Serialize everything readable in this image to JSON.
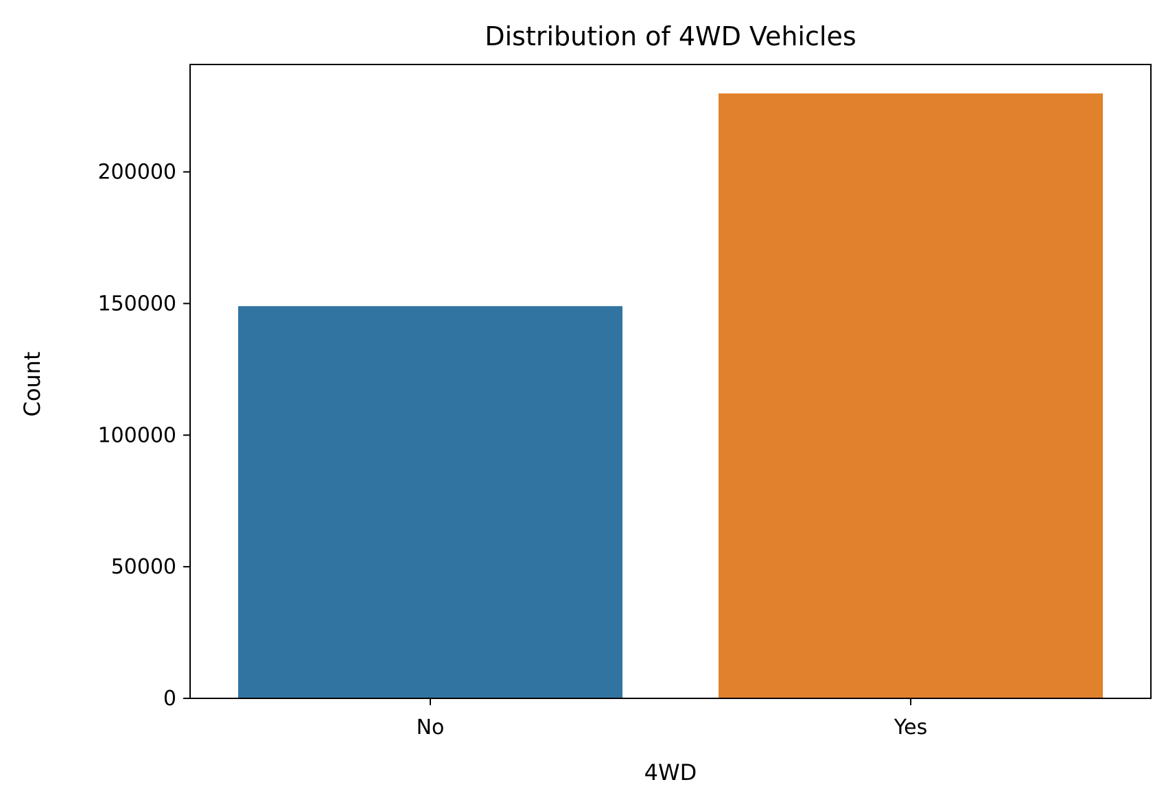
{
  "chart_data": {
    "type": "bar",
    "title": "Distribution of 4WD Vehicles",
    "xlabel": "4WD",
    "ylabel": "Count",
    "categories": [
      "No",
      "Yes"
    ],
    "values": [
      149000,
      229800
    ],
    "ylim": [
      0,
      240800
    ],
    "yticks": [
      0,
      50000,
      100000,
      150000,
      200000
    ],
    "ytick_labels": [
      "0",
      "50000",
      "100000",
      "150000",
      "200000"
    ],
    "colors": [
      "#3274a1",
      "#e1812c"
    ],
    "grid": false,
    "legend": "none"
  }
}
